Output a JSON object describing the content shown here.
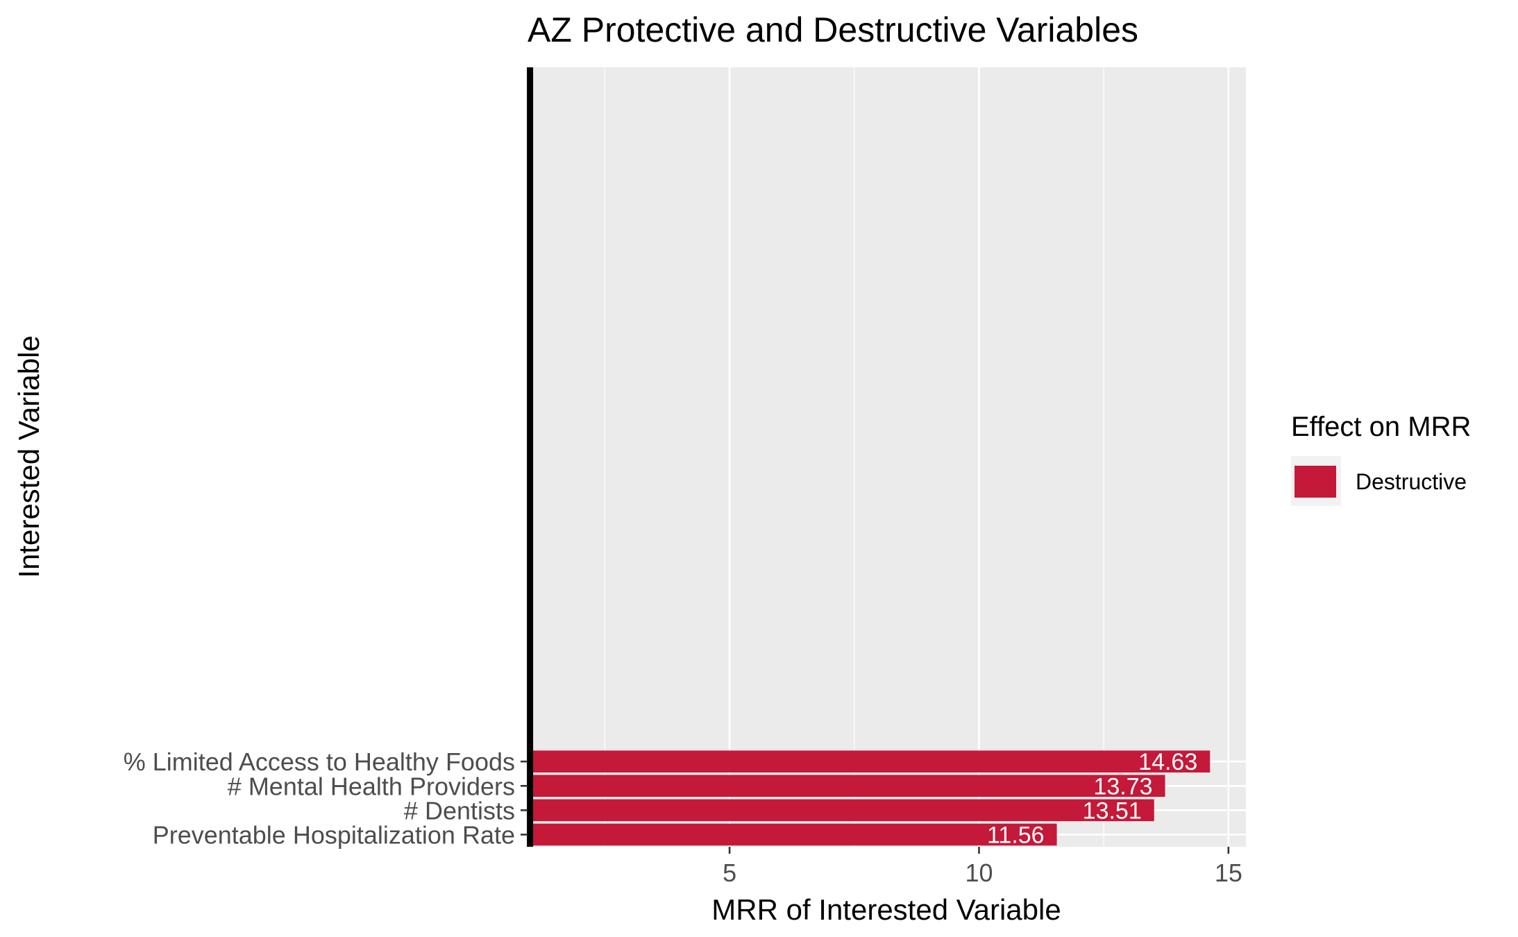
{
  "chart_data": {
    "type": "bar",
    "orientation": "horizontal",
    "title": "AZ Protective and Destructive Variables",
    "xlabel": "MRR of Interested Variable",
    "ylabel": "Interested Variable",
    "xlim": [
      0.95,
      15.35
    ],
    "x_ticks": [
      5,
      10,
      15
    ],
    "x_minor_ticks": [
      2.5,
      7.5,
      12.5
    ],
    "baseline": 1,
    "categories": [
      "% Limited Access to Healthy Foods",
      "# Mental Health Providers",
      "# Dentists",
      "Preventable Hospitalization Rate"
    ],
    "values": [
      14.63,
      13.73,
      13.51,
      11.56
    ],
    "value_labels": [
      "14.63",
      "13.73",
      "13.51",
      "11.56"
    ],
    "groups": [
      "Destructive",
      "Destructive",
      "Destructive",
      "Destructive"
    ],
    "legend": {
      "title": "Effect on MRR",
      "position": "right",
      "entries": [
        {
          "label": "Destructive",
          "color": "#C41939"
        }
      ]
    },
    "grid": true,
    "colors": {
      "bar": "#C41939",
      "panel": "#EBEBEB",
      "grid": "#FFFFFF",
      "baseline": "#000000"
    }
  }
}
